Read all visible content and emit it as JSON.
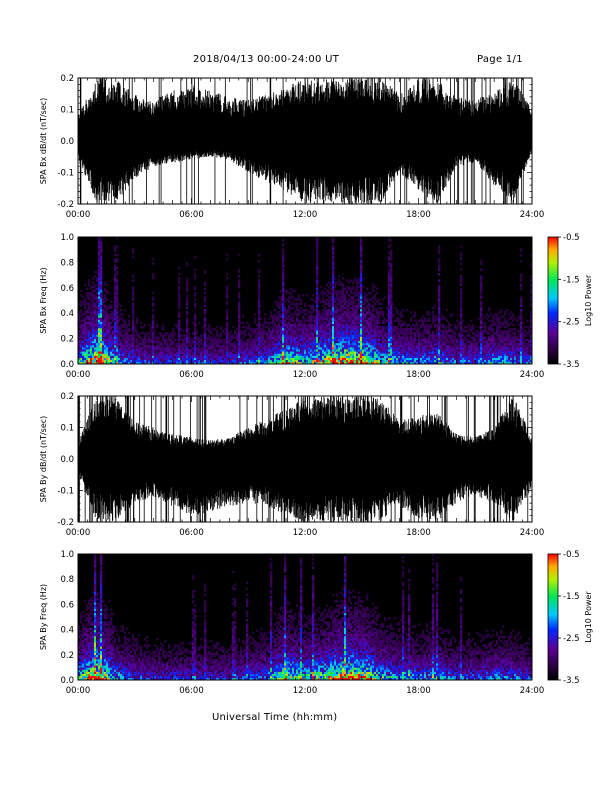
{
  "header": {
    "title": "2018/04/13  00:00-24:00 UT",
    "page": "Page 1/1"
  },
  "xlabel": "Universal Time (hh:mm)",
  "chart_data": [
    {
      "type": "line",
      "ylabel": "SPA Bx dB/dt (nT/sec)",
      "ylim": [
        -0.2,
        0.2
      ],
      "yticks": [
        "-0.2",
        "-0.1",
        "0.0",
        "0.1",
        "0.2"
      ],
      "xlim": [
        0,
        24
      ],
      "xticks": [
        "00:00",
        "06:00",
        "12:00",
        "18:00",
        "24:00"
      ],
      "envelope": [
        {
          "hour": 0,
          "max": 0.08,
          "min": -0.06
        },
        {
          "hour": 1,
          "max": 0.2,
          "min": -0.2
        },
        {
          "hour": 2,
          "max": 0.2,
          "min": -0.2
        },
        {
          "hour": 3,
          "max": 0.15,
          "min": -0.12
        },
        {
          "hour": 4,
          "max": 0.13,
          "min": -0.08
        },
        {
          "hour": 5,
          "max": 0.16,
          "min": -0.07
        },
        {
          "hour": 6,
          "max": 0.18,
          "min": -0.06
        },
        {
          "hour": 7,
          "max": 0.16,
          "min": -0.05
        },
        {
          "hour": 8,
          "max": 0.14,
          "min": -0.06
        },
        {
          "hour": 9,
          "max": 0.13,
          "min": -0.1
        },
        {
          "hour": 10,
          "max": 0.15,
          "min": -0.13
        },
        {
          "hour": 11,
          "max": 0.17,
          "min": -0.16
        },
        {
          "hour": 12,
          "max": 0.2,
          "min": -0.2
        },
        {
          "hour": 13,
          "max": 0.2,
          "min": -0.2
        },
        {
          "hour": 14,
          "max": 0.2,
          "min": -0.2
        },
        {
          "hour": 15,
          "max": 0.2,
          "min": -0.2
        },
        {
          "hour": 16,
          "max": 0.2,
          "min": -0.2
        },
        {
          "hour": 17,
          "max": 0.15,
          "min": -0.1
        },
        {
          "hour": 18,
          "max": 0.2,
          "min": -0.16
        },
        {
          "hour": 19,
          "max": 0.2,
          "min": -0.2
        },
        {
          "hour": 20,
          "max": 0.14,
          "min": -0.08
        },
        {
          "hour": 21,
          "max": 0.13,
          "min": -0.07
        },
        {
          "hour": 22,
          "max": 0.16,
          "min": -0.14
        },
        {
          "hour": 23,
          "max": 0.2,
          "min": -0.2
        },
        {
          "hour": 24,
          "max": 0.1,
          "min": -0.03
        }
      ]
    },
    {
      "type": "heatmap",
      "ylabel": "SPA Bx Freq (Hz)",
      "ylim": [
        0,
        1.0
      ],
      "yticks": [
        "0.0",
        "0.2",
        "0.4",
        "0.6",
        "0.8",
        "1.0"
      ],
      "xlim": [
        0,
        24
      ],
      "xticks": [
        "00:00",
        "06:00",
        "12:00",
        "18:00",
        "24:00"
      ],
      "colorbar": {
        "label": "Log10 Power",
        "range": [
          -3.5,
          -0.5
        ],
        "ticks": [
          "-0.5",
          "-1.5",
          "-2.5",
          "-3.5"
        ]
      },
      "activity": [
        {
          "hour": 0,
          "level": 0.5
        },
        {
          "hour": 1,
          "level": 1.0
        },
        {
          "hour": 2,
          "level": 0.45
        },
        {
          "hour": 3,
          "level": 0.35
        },
        {
          "hour": 4,
          "level": 0.3
        },
        {
          "hour": 5,
          "level": 0.3
        },
        {
          "hour": 6,
          "level": 0.3
        },
        {
          "hour": 7,
          "level": 0.3
        },
        {
          "hour": 8,
          "level": 0.3
        },
        {
          "hour": 9,
          "level": 0.35
        },
        {
          "hour": 10,
          "level": 0.4
        },
        {
          "hour": 11,
          "level": 0.7
        },
        {
          "hour": 12,
          "level": 0.55
        },
        {
          "hour": 13,
          "level": 0.7
        },
        {
          "hour": 14,
          "level": 0.9
        },
        {
          "hour": 15,
          "level": 0.85
        },
        {
          "hour": 16,
          "level": 0.55
        },
        {
          "hour": 17,
          "level": 0.45
        },
        {
          "hour": 18,
          "level": 0.4
        },
        {
          "hour": 19,
          "level": 0.45
        },
        {
          "hour": 20,
          "level": 0.35
        },
        {
          "hour": 21,
          "level": 0.35
        },
        {
          "hour": 22,
          "level": 0.45
        },
        {
          "hour": 23,
          "level": 0.4
        },
        {
          "hour": 24,
          "level": 0.3
        }
      ]
    },
    {
      "type": "line",
      "ylabel": "SPA By dB/dt (nT/sec)",
      "ylim": [
        -0.2,
        0.2
      ],
      "yticks": [
        "-0.2",
        "-0.1",
        "0.0",
        "0.1",
        "0.2"
      ],
      "xlim": [
        0,
        24
      ],
      "xticks": [
        "00:00",
        "06:00",
        "12:00",
        "18:00",
        "24:00"
      ],
      "envelope": [
        {
          "hour": 0,
          "max": 0.06,
          "min": -0.05
        },
        {
          "hour": 1,
          "max": 0.2,
          "min": -0.2
        },
        {
          "hour": 2,
          "max": 0.2,
          "min": -0.2
        },
        {
          "hour": 3,
          "max": 0.12,
          "min": -0.14
        },
        {
          "hour": 4,
          "max": 0.1,
          "min": -0.12
        },
        {
          "hour": 5,
          "max": 0.08,
          "min": -0.15
        },
        {
          "hour": 6,
          "max": 0.07,
          "min": -0.18
        },
        {
          "hour": 7,
          "max": 0.06,
          "min": -0.17
        },
        {
          "hour": 8,
          "max": 0.07,
          "min": -0.15
        },
        {
          "hour": 9,
          "max": 0.1,
          "min": -0.14
        },
        {
          "hour": 10,
          "max": 0.13,
          "min": -0.15
        },
        {
          "hour": 11,
          "max": 0.16,
          "min": -0.18
        },
        {
          "hour": 12,
          "max": 0.2,
          "min": -0.2
        },
        {
          "hour": 13,
          "max": 0.2,
          "min": -0.2
        },
        {
          "hour": 14,
          "max": 0.2,
          "min": -0.2
        },
        {
          "hour": 15,
          "max": 0.2,
          "min": -0.2
        },
        {
          "hour": 16,
          "max": 0.2,
          "min": -0.2
        },
        {
          "hour": 17,
          "max": 0.12,
          "min": -0.15
        },
        {
          "hour": 18,
          "max": 0.14,
          "min": -0.2
        },
        {
          "hour": 19,
          "max": 0.15,
          "min": -0.2
        },
        {
          "hour": 20,
          "max": 0.08,
          "min": -0.14
        },
        {
          "hour": 21,
          "max": 0.07,
          "min": -0.12
        },
        {
          "hour": 22,
          "max": 0.1,
          "min": -0.14
        },
        {
          "hour": 23,
          "max": 0.2,
          "min": -0.2
        },
        {
          "hour": 24,
          "max": 0.07,
          "min": -0.09
        }
      ]
    },
    {
      "type": "heatmap",
      "ylabel": "SPA By Freq (Hz)",
      "ylim": [
        0,
        1.0
      ],
      "yticks": [
        "0.0",
        "0.2",
        "0.4",
        "0.6",
        "0.8",
        "1.0"
      ],
      "xlim": [
        0,
        24
      ],
      "xticks": [
        "00:00",
        "06:00",
        "12:00",
        "18:00",
        "24:00"
      ],
      "colorbar": {
        "label": "Log10 Power",
        "range": [
          -3.5,
          -0.5
        ],
        "ticks": [
          "-0.5",
          "-1.5",
          "-2.5",
          "-3.5"
        ]
      },
      "activity": [
        {
          "hour": 0,
          "level": 0.5
        },
        {
          "hour": 1,
          "level": 1.0
        },
        {
          "hour": 2,
          "level": 0.45
        },
        {
          "hour": 3,
          "level": 0.35
        },
        {
          "hour": 4,
          "level": 0.3
        },
        {
          "hour": 5,
          "level": 0.3
        },
        {
          "hour": 6,
          "level": 0.3
        },
        {
          "hour": 7,
          "level": 0.3
        },
        {
          "hour": 8,
          "level": 0.3
        },
        {
          "hour": 9,
          "level": 0.35
        },
        {
          "hour": 10,
          "level": 0.4
        },
        {
          "hour": 11,
          "level": 0.7
        },
        {
          "hour": 12,
          "level": 0.55
        },
        {
          "hour": 13,
          "level": 0.65
        },
        {
          "hour": 14,
          "level": 0.9
        },
        {
          "hour": 15,
          "level": 0.85
        },
        {
          "hour": 16,
          "level": 0.55
        },
        {
          "hour": 17,
          "level": 0.45
        },
        {
          "hour": 18,
          "level": 0.4
        },
        {
          "hour": 19,
          "level": 0.45
        },
        {
          "hour": 20,
          "level": 0.35
        },
        {
          "hour": 21,
          "level": 0.35
        },
        {
          "hour": 22,
          "level": 0.4
        },
        {
          "hour": 23,
          "level": 0.4
        },
        {
          "hour": 24,
          "level": 0.3
        }
      ]
    }
  ]
}
